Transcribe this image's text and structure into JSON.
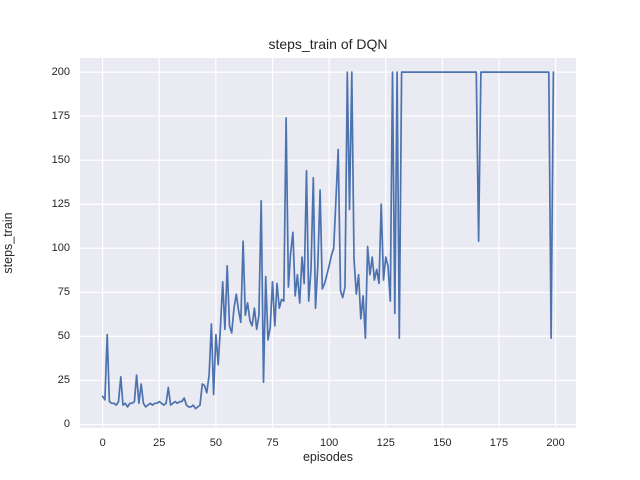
{
  "chart_data": {
    "type": "line",
    "title": "steps_train of DQN",
    "xlabel": "episodes",
    "ylabel": "steps_train",
    "x_ticks": [
      0,
      25,
      50,
      75,
      100,
      125,
      150,
      175,
      200
    ],
    "y_ticks": [
      0,
      25,
      50,
      75,
      100,
      125,
      150,
      175,
      200
    ],
    "xlim": [
      -10,
      209
    ],
    "ylim": [
      -2,
      208
    ],
    "grid": true,
    "legend": "none",
    "series": [
      {
        "name": "DQN steps_train",
        "x_is_index": true,
        "values": [
          16,
          14,
          51,
          13,
          12,
          12,
          11,
          13,
          27,
          11,
          12,
          10,
          12,
          12,
          13,
          28,
          12,
          23,
          12,
          10,
          11,
          12,
          11,
          12,
          12,
          13,
          12,
          11,
          12,
          21,
          11,
          12,
          13,
          12,
          13,
          13,
          15,
          11,
          10,
          10,
          11,
          9,
          10,
          11,
          23,
          22,
          18,
          28,
          57,
          17,
          51,
          34,
          55,
          81,
          54,
          90,
          56,
          52,
          66,
          74,
          65,
          58,
          104,
          62,
          69,
          59,
          56,
          66,
          54,
          62,
          127,
          24,
          84,
          48,
          55,
          81,
          56,
          80,
          66,
          71,
          70,
          174,
          78,
          97,
          109,
          73,
          85,
          69,
          95,
          80,
          144,
          70,
          88,
          140,
          66,
          90,
          133,
          77,
          80,
          85,
          90,
          96,
          100,
          127,
          156,
          76,
          72,
          78,
          200,
          122,
          200,
          94,
          74,
          85,
          60,
          73,
          49,
          101,
          85,
          95,
          82,
          88,
          80,
          125,
          82,
          95,
          90,
          70,
          200,
          63,
          200,
          49,
          200,
          200,
          200,
          200,
          200,
          200,
          200,
          200,
          200,
          200,
          200,
          200,
          200,
          200,
          200,
          200,
          200,
          200,
          200,
          200,
          200,
          200,
          200,
          200,
          200,
          200,
          200,
          200,
          200,
          200,
          200,
          200,
          200,
          200,
          104,
          200,
          200,
          200,
          200,
          200,
          200,
          200,
          200,
          200,
          200,
          200,
          200,
          200,
          200,
          200,
          200,
          200,
          200,
          200,
          200,
          200,
          200,
          200,
          200,
          200,
          200,
          200,
          200,
          200,
          200,
          200,
          49,
          200
        ]
      }
    ],
    "colors": {
      "line": "#4c72b0",
      "axes_background": "#eaeaf2",
      "gridline": "#ffffff",
      "text": "#262626",
      "figure_background": "#ffffff"
    }
  }
}
